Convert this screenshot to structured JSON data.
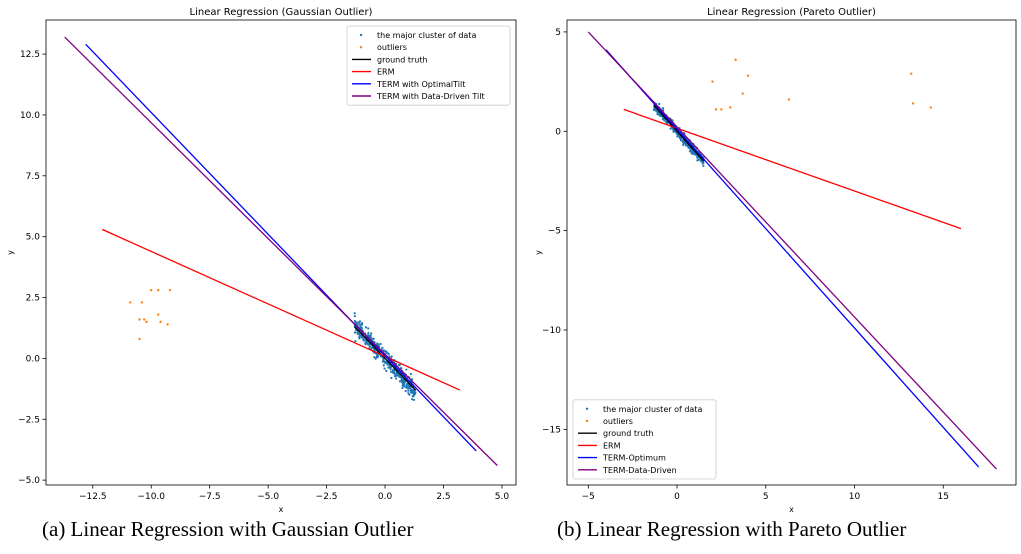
{
  "chart_data": [
    {
      "type": "scatter",
      "title": "Linear Regression (Gaussian Outlier)",
      "xlabel": "x",
      "ylabel": "y",
      "xlim": [
        -14.5,
        5.6
      ],
      "ylim": [
        -5.2,
        13.9
      ],
      "xticks": [
        -12.5,
        -10.0,
        -7.5,
        -5.0,
        -2.5,
        0.0,
        2.5,
        5.0
      ],
      "xtick_labels": [
        "−12.5",
        "−10.0",
        "−7.5",
        "−5.0",
        "−2.5",
        "0.0",
        "2.5",
        "5.0"
      ],
      "yticks": [
        -5.0,
        -2.5,
        0.0,
        2.5,
        5.0,
        7.5,
        10.0,
        12.5
      ],
      "ytick_labels": [
        "−5.0",
        "−2.5",
        "0.0",
        "2.5",
        "5.0",
        "7.5",
        "10.0",
        "12.5"
      ],
      "grid": false,
      "legend_position": "top-right",
      "cluster": {
        "name": "the major cluster of data",
        "color": "#1f77b4",
        "x_range": [
          -1.3,
          1.3
        ],
        "slope": -1.05,
        "spread": 0.18
      },
      "outliers": {
        "name": "outliers",
        "color": "#ff7f0e",
        "points": [
          [
            -10.3,
            1.6
          ],
          [
            -10.5,
            1.6
          ],
          [
            -10.0,
            2.8
          ],
          [
            -9.7,
            2.8
          ],
          [
            -9.2,
            2.8
          ],
          [
            -10.9,
            2.3
          ],
          [
            -10.4,
            2.3
          ],
          [
            -9.7,
            1.8
          ],
          [
            -9.6,
            1.5
          ],
          [
            -9.3,
            1.4
          ],
          [
            -10.5,
            0.8
          ],
          [
            -10.2,
            1.5
          ]
        ]
      },
      "lines": [
        {
          "name": "ground truth",
          "color": "#000000",
          "points": [
            [
              -1.3,
              1.3
            ],
            [
              1.3,
              -1.3
            ]
          ]
        },
        {
          "name": "ERM",
          "color": "#ff0000",
          "points": [
            [
              -12.1,
              5.3
            ],
            [
              3.2,
              -1.3
            ]
          ]
        },
        {
          "name": "TERM with OptimalTilt",
          "color": "#0000ff",
          "points": [
            [
              -12.8,
              12.9
            ],
            [
              3.9,
              -3.8
            ]
          ]
        },
        {
          "name": "TERM with Data-Driven Tilt",
          "color": "#800080",
          "points": [
            [
              -13.7,
              13.2
            ],
            [
              4.8,
              -4.4
            ]
          ]
        }
      ]
    },
    {
      "type": "scatter",
      "title": "Linear Regression (Pareto Outlier)",
      "xlabel": "x",
      "ylabel": "y",
      "xlim": [
        -6.2,
        19.1
      ],
      "ylim": [
        -17.8,
        5.6
      ],
      "xticks": [
        -5,
        0,
        5,
        10,
        15
      ],
      "xtick_labels": [
        "−5",
        "0",
        "5",
        "10",
        "15"
      ],
      "yticks": [
        -15,
        -10,
        -5,
        0,
        5
      ],
      "ytick_labels": [
        "−15",
        "−10",
        "−5",
        "0",
        "5"
      ],
      "grid": false,
      "legend_position": "bottom-left",
      "cluster": {
        "name": "the major cluster of data",
        "color": "#1f77b4",
        "x_range": [
          -1.3,
          1.5
        ],
        "slope": -1.0,
        "spread": 0.12
      },
      "outliers": {
        "name": "outliers",
        "color": "#ff7f0e",
        "points": [
          [
            2.0,
            2.5
          ],
          [
            2.2,
            1.1
          ],
          [
            2.5,
            1.1
          ],
          [
            3.0,
            1.2
          ],
          [
            3.3,
            3.6
          ],
          [
            3.7,
            1.9
          ],
          [
            4.0,
            2.8
          ],
          [
            6.3,
            1.6
          ],
          [
            13.2,
            2.9
          ],
          [
            13.3,
            1.4
          ],
          [
            14.3,
            1.2
          ]
        ]
      },
      "lines": [
        {
          "name": "ground truth",
          "color": "#000000",
          "points": [
            [
              -1.3,
              1.3
            ],
            [
              1.5,
              -1.5
            ]
          ]
        },
        {
          "name": "ERM",
          "color": "#ff0000",
          "points": [
            [
              -3.0,
              1.1
            ],
            [
              16.0,
              -4.9
            ]
          ]
        },
        {
          "name": "TERM-Optimum",
          "color": "#0000ff",
          "points": [
            [
              -4.0,
              4.1
            ],
            [
              17.0,
              -16.9
            ]
          ]
        },
        {
          "name": "TERM-Data-Driven",
          "color": "#800080",
          "points": [
            [
              -5.0,
              5.0
            ],
            [
              18.0,
              -17.0
            ]
          ]
        }
      ]
    }
  ],
  "captions": {
    "a": "(a) Linear Regression with Gaussian Outlier",
    "b": "(b) Linear Regression with Pareto Outlier"
  }
}
